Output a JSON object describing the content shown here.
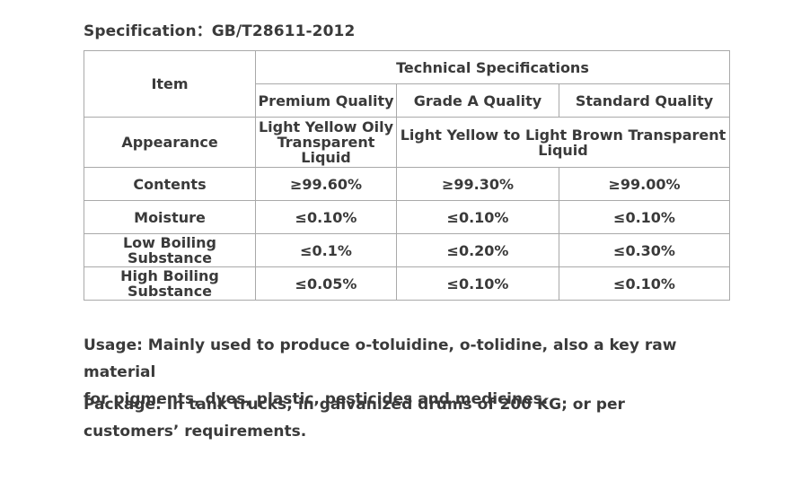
{
  "specification": "Specification：GB/T28611-2012",
  "table": {
    "item_header": "Item",
    "tech_header": "Technical Specifications",
    "grades": [
      "Premium Quality",
      "Grade A Quality",
      "Standard Quality"
    ],
    "appearance": {
      "label": "Appearance",
      "premium": "Light Yellow Oily Transparent Liquid",
      "others": "Light Yellow to Light Brown Transparent Liquid"
    },
    "rows": [
      {
        "label": "Contents",
        "values": [
          "≥99.60%",
          "≥99.30%",
          "≥99.00%"
        ]
      },
      {
        "label": "Moisture",
        "values": [
          "≤0.10%",
          "≤0.10%",
          "≤0.10%"
        ]
      },
      {
        "label": "Low Boiling Substance",
        "values": [
          "≤0.1%",
          "≤0.20%",
          "≤0.30%"
        ]
      },
      {
        "label": "High Boiling Substance",
        "values": [
          "≤0.05%",
          "≤0.10%",
          "≤0.10%"
        ]
      }
    ]
  },
  "usage": {
    "line1": "Usage: Mainly used to produce o-toluidine,  o-tolidine, also a key raw  material",
    "line2": "for pigments, dyes, plastic, pesticides and medicines."
  },
  "package": {
    "line1": "Package: In tank trucks; in galvanized drums of 200 KG; or per",
    "line2": "customers’ requirements."
  }
}
